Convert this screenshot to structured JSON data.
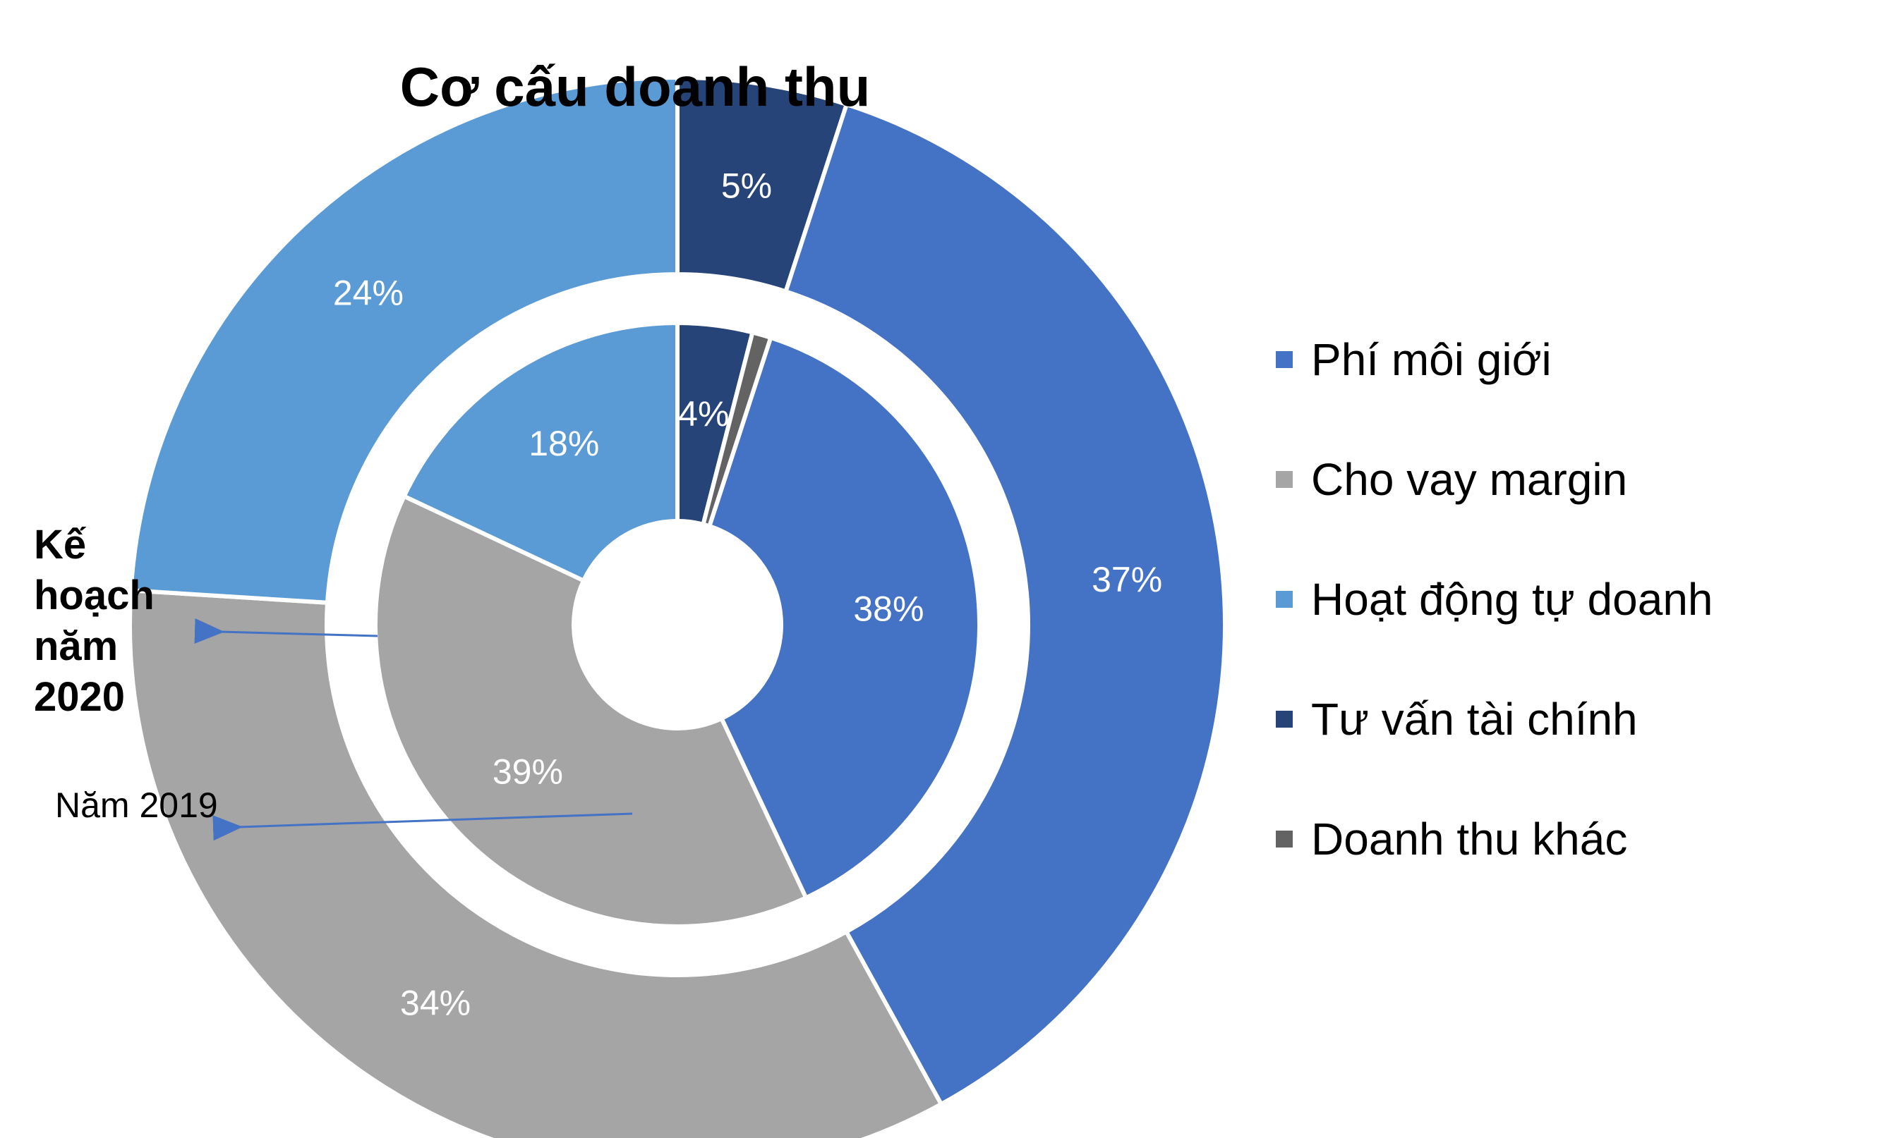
{
  "chart_data": {
    "type": "pie",
    "variant": "nested-donut",
    "title": "Cơ cấu doanh thu",
    "categories": [
      "Phí môi giới",
      "Cho vay margin",
      "Hoạt động tự doanh",
      "Tư vấn tài chính",
      "Doanh thu khác"
    ],
    "colors": [
      "#4472C4",
      "#A5A5A5",
      "#5B9BD5",
      "#264478",
      "#636363"
    ],
    "series": [
      {
        "name": "Kế hoạch năm 2020",
        "ring": "outer",
        "values": [
          37,
          34,
          24,
          5,
          0
        ]
      },
      {
        "name": "Năm 2019",
        "ring": "inner",
        "values": [
          38,
          39,
          18,
          4,
          1
        ]
      }
    ],
    "data_labels": {
      "outer": [
        "37%",
        "34%",
        "24%",
        "5%",
        ""
      ],
      "inner": [
        "38%",
        "39%",
        "18%",
        "4%",
        ""
      ]
    },
    "legend_position": "right"
  },
  "annotations": {
    "outer_ring_label": "Kế hoạch năm 2020",
    "inner_ring_label": "Năm 2019"
  }
}
